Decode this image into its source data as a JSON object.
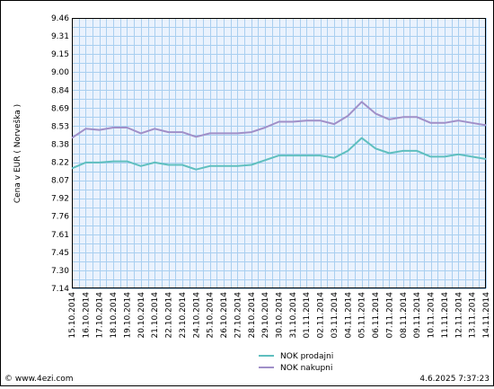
{
  "chart_data": {
    "type": "line",
    "ylabel": "Cena v EUR ( Norveška )",
    "ylim": [
      7.14,
      9.46
    ],
    "yticks": [
      "9.46",
      "9.31",
      "9.15",
      "9.00",
      "8.84",
      "8.69",
      "8.53",
      "8.38",
      "8.22",
      "8.07",
      "7.92",
      "7.76",
      "7.61",
      "7.45",
      "7.30",
      "7.14"
    ],
    "x": [
      "15.10.2014",
      "16.10.2014",
      "17.10.2014",
      "18.10.2014",
      "19.10.2014",
      "20.10.2014",
      "21.10.2014",
      "22.10.2014",
      "23.10.2014",
      "24.10.2014",
      "25.10.2014",
      "26.10.2014",
      "27.10.2014",
      "28.10.2014",
      "29.10.2014",
      "30.10.2014",
      "31.10.2014",
      "01.11.2014",
      "02.11.2014",
      "03.11.2014",
      "04.11.2014",
      "05.11.2014",
      "06.11.2014",
      "07.11.2014",
      "08.11.2014",
      "09.11.2014",
      "10.11.2014",
      "11.11.2014",
      "12.11.2014",
      "13.11.2014",
      "14.11.2014"
    ],
    "series": [
      {
        "name": "NOK prodajni",
        "color": "#5fbfbf",
        "values": [
          8.17,
          8.22,
          8.22,
          8.23,
          8.23,
          8.19,
          8.22,
          8.2,
          8.2,
          8.16,
          8.19,
          8.19,
          8.19,
          8.2,
          8.24,
          8.28,
          8.28,
          8.28,
          8.28,
          8.26,
          8.32,
          8.43,
          8.34,
          8.3,
          8.32,
          8.32,
          8.27,
          8.27,
          8.29,
          8.27,
          8.25
        ]
      },
      {
        "name": "NOK nakupni",
        "color": "#a08fc8",
        "values": [
          8.43,
          8.51,
          8.5,
          8.52,
          8.52,
          8.47,
          8.51,
          8.48,
          8.48,
          8.44,
          8.47,
          8.47,
          8.47,
          8.48,
          8.52,
          8.57,
          8.57,
          8.58,
          8.58,
          8.55,
          8.62,
          8.74,
          8.64,
          8.59,
          8.61,
          8.61,
          8.56,
          8.56,
          8.58,
          8.56,
          8.54
        ]
      }
    ],
    "grid": true,
    "legend": "bottom-center"
  },
  "footer": {
    "source": "© www.4ezi.com",
    "timestamp": "4.6.2025 7:37:23"
  }
}
